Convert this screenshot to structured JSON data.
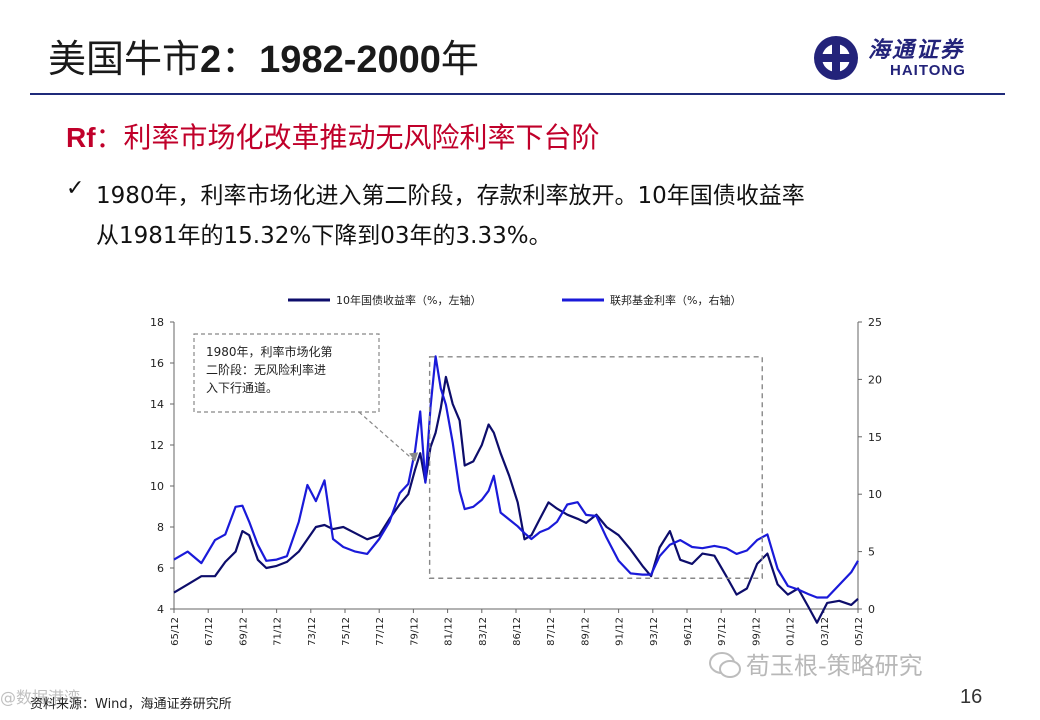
{
  "slide": {
    "title_prefix": "美国牛市",
    "title_number": "2",
    "title_sep": "：",
    "title_years": "1982-2000",
    "title_suffix": "年",
    "logo_cn": "海通证券",
    "logo_en": "HAITONG",
    "subtitle_rf": "Rf",
    "subtitle_text": "：利率市场化改革推动无风险利率下台阶",
    "bullet_line1": "1980年，利率市场化进入第二阶段，存款利率放开。10年国债收益率",
    "bullet_line2": "从1981年的15.32%下降到03年的3.33%。",
    "watermark": "荀玉根-策略研究",
    "watermark2": "@数据港湾",
    "source": "资料来源：Wind，海通证券研究所",
    "page_number": "16"
  },
  "colors": {
    "title": "#1a1a1a",
    "rule": "#1f2a7a",
    "subtitle": "#c0002a",
    "series_10y": "#0d0d6b",
    "series_fed": "#1a1ad9",
    "annotation_box": "#888888"
  },
  "chart_data": {
    "type": "line",
    "annotation": "1980年，利率市场化第二阶段：无风险利率进入下行通道。",
    "annotation_lines": [
      "1980年，利率市场化第",
      "二阶段：无风险利率进",
      "入下行通道。"
    ],
    "legend": {
      "placement": "top"
    },
    "x_ticks": [
      "65/12",
      "67/12",
      "69/12",
      "71/12",
      "73/12",
      "75/12",
      "77/12",
      "79/12",
      "81/12",
      "83/12",
      "86/12",
      "87/12",
      "89/12",
      "91/12",
      "93/12",
      "96/12",
      "97/12",
      "99/12",
      "01/12",
      "03/12",
      "05/12"
    ],
    "left_axis": {
      "ylim": [
        4,
        18
      ],
      "ticks": [
        4,
        6,
        8,
        10,
        12,
        14,
        16,
        18
      ]
    },
    "right_axis": {
      "ylim": [
        0,
        25
      ],
      "ticks": [
        0,
        5,
        10,
        15,
        20,
        25
      ]
    },
    "series": [
      {
        "name": "10年国债收益率（%，左轴）",
        "axis": "left",
        "x": [
          1965.9,
          1966.7,
          1967.5,
          1968.3,
          1968.9,
          1969.5,
          1969.9,
          1970.3,
          1970.8,
          1971.3,
          1971.9,
          1972.5,
          1973.2,
          1973.7,
          1974.2,
          1974.7,
          1975.2,
          1975.8,
          1976.5,
          1977.2,
          1977.9,
          1978.5,
          1979.1,
          1979.6,
          1980.0,
          1980.3,
          1980.6,
          1980.9,
          1981.2,
          1981.5,
          1981.8,
          1982.2,
          1982.6,
          1982.9,
          1983.4,
          1983.9,
          1984.3,
          1984.6,
          1985.0,
          1985.5,
          1986.0,
          1986.4,
          1986.8,
          1987.3,
          1987.8,
          1988.3,
          1988.9,
          1989.5,
          1990.0,
          1990.6,
          1991.2,
          1991.9,
          1992.6,
          1993.3,
          1993.8,
          1994.3,
          1994.9,
          1995.5,
          1996.2,
          1996.8,
          1997.5,
          1998.2,
          1998.8,
          1999.4,
          2000.0,
          2000.6,
          2001.2,
          2001.8,
          2002.4,
          2003.0,
          2003.5,
          2004.1,
          2004.8,
          2005.5,
          2005.9
        ],
        "values": [
          4.8,
          5.2,
          5.6,
          5.6,
          6.3,
          6.8,
          7.8,
          7.6,
          6.4,
          6.0,
          6.1,
          6.3,
          6.8,
          7.4,
          8.0,
          8.1,
          7.9,
          8.0,
          7.7,
          7.4,
          7.6,
          8.4,
          9.1,
          9.6,
          10.8,
          11.6,
          10.2,
          11.9,
          12.6,
          13.8,
          15.32,
          14.0,
          13.2,
          11.0,
          11.2,
          12.0,
          13.0,
          12.6,
          11.6,
          10.5,
          9.2,
          7.4,
          7.6,
          8.4,
          9.2,
          8.9,
          8.6,
          8.4,
          8.2,
          8.6,
          8.0,
          7.6,
          6.9,
          6.1,
          5.6,
          7.0,
          7.8,
          6.4,
          6.2,
          6.7,
          6.6,
          5.6,
          4.7,
          5.0,
          6.2,
          6.7,
          5.2,
          4.7,
          5.0,
          4.1,
          3.33,
          4.3,
          4.4,
          4.2,
          4.5
        ]
      },
      {
        "name": "联邦基金利率（%，右轴）",
        "axis": "right",
        "x": [
          1965.9,
          1966.7,
          1967.5,
          1968.3,
          1968.9,
          1969.5,
          1969.9,
          1970.3,
          1970.8,
          1971.3,
          1971.9,
          1972.5,
          1973.2,
          1973.7,
          1974.2,
          1974.7,
          1975.2,
          1975.8,
          1976.5,
          1977.2,
          1977.9,
          1978.5,
          1979.1,
          1979.6,
          1980.0,
          1980.3,
          1980.6,
          1980.9,
          1981.2,
          1981.5,
          1981.8,
          1982.2,
          1982.6,
          1982.9,
          1983.4,
          1983.9,
          1984.3,
          1984.6,
          1985.0,
          1985.5,
          1986.0,
          1986.4,
          1986.8,
          1987.3,
          1987.8,
          1988.3,
          1988.9,
          1989.5,
          1990.0,
          1990.6,
          1991.2,
          1991.9,
          1992.6,
          1993.3,
          1993.8,
          1994.3,
          1994.9,
          1995.5,
          1996.2,
          1996.8,
          1997.5,
          1998.2,
          1998.8,
          1999.4,
          2000.0,
          2000.6,
          2001.2,
          2001.8,
          2002.4,
          2003.0,
          2003.5,
          2004.1,
          2004.8,
          2005.5,
          2005.9
        ],
        "values": [
          4.3,
          5.0,
          4.0,
          6.0,
          6.5,
          8.9,
          9.0,
          7.6,
          5.6,
          4.2,
          4.3,
          4.6,
          7.6,
          10.8,
          9.4,
          11.2,
          6.1,
          5.4,
          5.0,
          4.8,
          6.1,
          7.6,
          10.1,
          10.9,
          13.8,
          17.2,
          11.0,
          17.6,
          22.0,
          19.2,
          17.8,
          14.5,
          10.3,
          8.7,
          8.9,
          9.5,
          10.3,
          11.6,
          8.4,
          7.8,
          7.2,
          6.6,
          6.1,
          6.7,
          7.0,
          7.6,
          9.1,
          9.3,
          8.2,
          8.1,
          6.2,
          4.2,
          3.1,
          3.0,
          3.0,
          4.6,
          5.6,
          6.0,
          5.4,
          5.3,
          5.5,
          5.3,
          4.8,
          5.1,
          6.0,
          6.5,
          3.5,
          2.0,
          1.7,
          1.3,
          1.0,
          1.0,
          2.1,
          3.2,
          4.2
        ]
      }
    ]
  }
}
